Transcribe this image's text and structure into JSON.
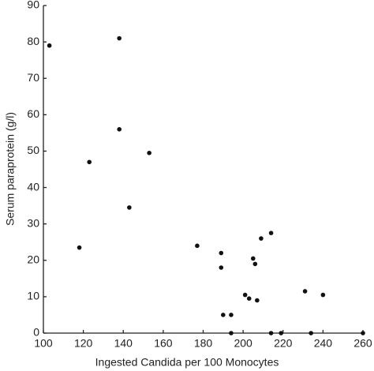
{
  "chart_data": {
    "type": "scatter",
    "x_label": "Ingested Candida per 100 Monocytes",
    "y_label": "Serum paraprotein (g/l)",
    "x": [
      103,
      118,
      123,
      138,
      138,
      153,
      143,
      177,
      189,
      189,
      190,
      194,
      194,
      201,
      203,
      205,
      206,
      207,
      209,
      214,
      214,
      219,
      231,
      234,
      240,
      260
    ],
    "values": [
      79,
      23.5,
      47,
      81,
      56,
      49.5,
      34.5,
      24,
      22,
      18,
      5,
      5,
      0,
      10.5,
      9.5,
      20.5,
      19,
      9,
      26,
      27.5,
      0,
      0,
      11.5,
      0,
      10.5,
      0
    ],
    "color": "#111111",
    "xlim": [
      100,
      260
    ],
    "xticks": [
      100,
      120,
      140,
      160,
      180,
      200,
      220,
      240,
      260
    ],
    "ylim": [
      0,
      90
    ],
    "yticks": [
      0,
      10,
      20,
      30,
      40,
      50,
      60,
      70,
      80,
      90
    ]
  }
}
